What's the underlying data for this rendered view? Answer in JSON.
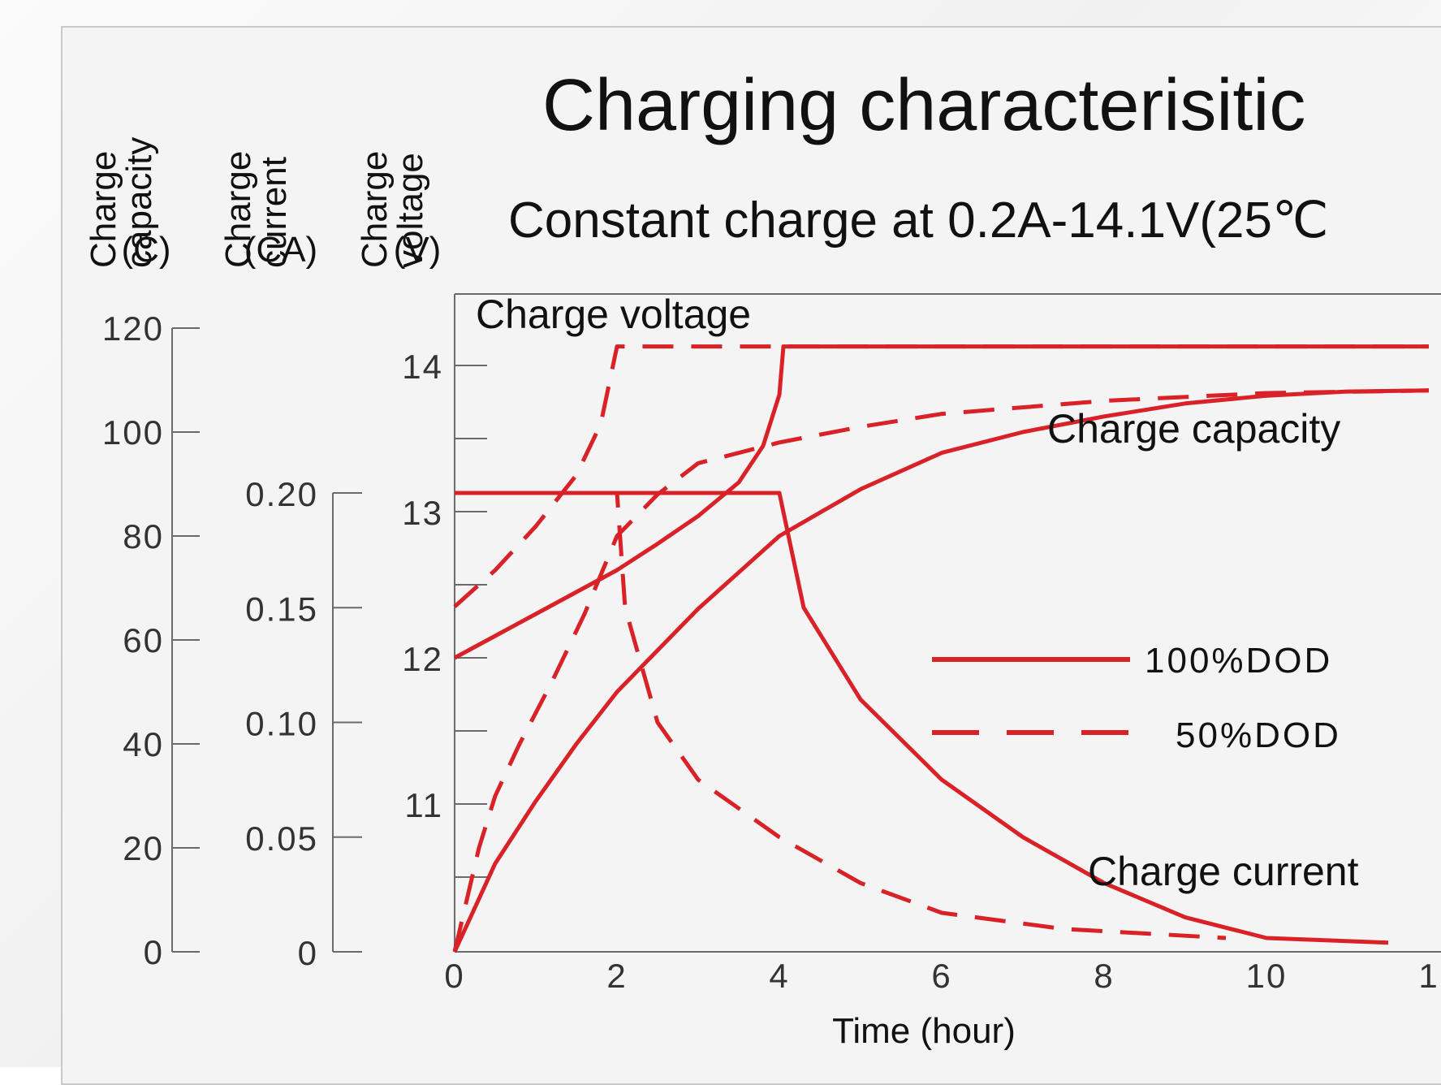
{
  "chart_data": {
    "type": "line",
    "title": "Charging characterisitic",
    "subtitle": "Constant charge at 0.2A-14.1V(25℃",
    "xlabel": "Time (hour)",
    "x_ticks": [
      "0",
      "2",
      "4",
      "6",
      "8",
      "10",
      "1"
    ],
    "xlim": [
      0,
      12
    ],
    "axes": {
      "capacity": {
        "title_lines": [
          "Charge",
          "capacity",
          "(C)"
        ],
        "ticks": [
          "0",
          "20",
          "40",
          "60",
          "80",
          "100",
          "120"
        ],
        "ylim": [
          0,
          120
        ]
      },
      "current": {
        "title_lines": [
          "Charge",
          "current",
          "(CA)"
        ],
        "ticks": [
          "0",
          "0.05",
          "0.10",
          "0.15",
          "0.20"
        ],
        "ylim": [
          0,
          0.2
        ]
      },
      "voltage": {
        "title_lines": [
          "Charge",
          "voltage",
          "(V)"
        ],
        "ticks": [
          "11",
          "12",
          "13",
          "14"
        ],
        "ylim": [
          10,
          14.5
        ]
      }
    },
    "annotations": {
      "voltage": "Charge voltage",
      "capacity": "Charge capacity",
      "current": "Charge current"
    },
    "legend": [
      {
        "name": "100%DOD",
        "style": "solid"
      },
      {
        "name": "50%DOD",
        "style": "dashed"
      }
    ],
    "color": "#d92228",
    "series": [
      {
        "quantity": "voltage",
        "dod": "100%DOD",
        "style": "solid",
        "points": [
          [
            0,
            12.0
          ],
          [
            0.5,
            12.15
          ],
          [
            1,
            12.3
          ],
          [
            1.5,
            12.45
          ],
          [
            2,
            12.6
          ],
          [
            2.5,
            12.78
          ],
          [
            3,
            12.97
          ],
          [
            3.5,
            13.2
          ],
          [
            3.8,
            13.45
          ],
          [
            4,
            13.8
          ],
          [
            4.05,
            14.13
          ],
          [
            12,
            14.13
          ]
        ]
      },
      {
        "quantity": "voltage",
        "dod": "50%DOD",
        "style": "dashed",
        "points": [
          [
            0,
            12.35
          ],
          [
            0.5,
            12.6
          ],
          [
            1,
            12.9
          ],
          [
            1.5,
            13.25
          ],
          [
            1.8,
            13.6
          ],
          [
            2,
            14.13
          ],
          [
            12,
            14.13
          ]
        ]
      },
      {
        "quantity": "current",
        "dod": "100%DOD",
        "style": "solid",
        "points": [
          [
            0,
            0.2
          ],
          [
            4,
            0.2
          ],
          [
            4.3,
            0.15
          ],
          [
            5,
            0.11
          ],
          [
            6,
            0.075
          ],
          [
            7,
            0.05
          ],
          [
            8,
            0.03
          ],
          [
            9,
            0.015
          ],
          [
            10,
            0.006
          ],
          [
            11.5,
            0.004
          ]
        ]
      },
      {
        "quantity": "current",
        "dod": "50%DOD",
        "style": "dashed",
        "points": [
          [
            0,
            0.2
          ],
          [
            2,
            0.2
          ],
          [
            2.1,
            0.15
          ],
          [
            2.5,
            0.1
          ],
          [
            3,
            0.075
          ],
          [
            4,
            0.05
          ],
          [
            5,
            0.03
          ],
          [
            6,
            0.017
          ],
          [
            7.5,
            0.01
          ],
          [
            9.5,
            0.006
          ]
        ]
      },
      {
        "quantity": "capacity",
        "dod": "100%DOD",
        "style": "solid",
        "points": [
          [
            0,
            0
          ],
          [
            0.5,
            17
          ],
          [
            1,
            29
          ],
          [
            1.5,
            40
          ],
          [
            2,
            50
          ],
          [
            2.5,
            58
          ],
          [
            3,
            66
          ],
          [
            3.5,
            73
          ],
          [
            4,
            80
          ],
          [
            5,
            89
          ],
          [
            6,
            96
          ],
          [
            7,
            100
          ],
          [
            8,
            103
          ],
          [
            9,
            105.5
          ],
          [
            10,
            107
          ],
          [
            11,
            107.8
          ],
          [
            12,
            108
          ]
        ]
      },
      {
        "quantity": "capacity",
        "dod": "50%DOD",
        "style": "dashed",
        "points": [
          [
            0,
            0
          ],
          [
            0.15,
            10
          ],
          [
            0.3,
            20
          ],
          [
            0.5,
            30
          ],
          [
            0.8,
            40
          ],
          [
            1.2,
            52
          ],
          [
            1.6,
            65
          ],
          [
            2,
            80
          ],
          [
            2.5,
            88
          ],
          [
            3,
            94
          ],
          [
            4,
            98
          ],
          [
            5,
            101
          ],
          [
            6,
            103.5
          ],
          [
            8,
            106
          ],
          [
            10,
            107.5
          ],
          [
            12,
            108
          ]
        ]
      }
    ]
  }
}
